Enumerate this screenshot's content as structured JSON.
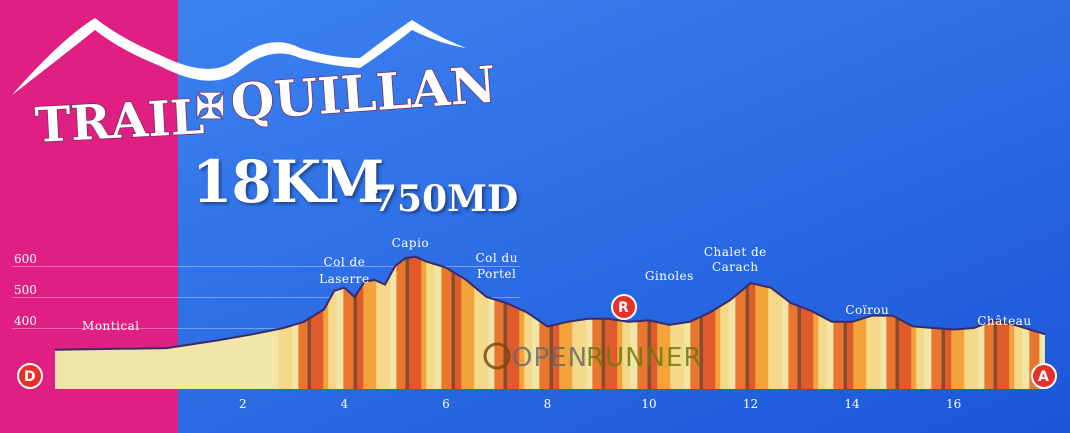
{
  "header": {
    "logo_left": "TRAIL",
    "logo_right": "QUILLAN",
    "distance": "18KM",
    "elevation": "750MD"
  },
  "watermark": {
    "prefix": "OPEN",
    "suffix": "RUNNER"
  },
  "markers": {
    "depart": "D",
    "arrivee": "A",
    "ravito": "R"
  },
  "colors": {
    "magenta_band": "#df1f82",
    "sky_top": "#4a8cf0",
    "sky_bottom": "#1a55d6",
    "stripe_palette": [
      "#8b4a2a",
      "#e05a2b",
      "#f2a33a",
      "#f4d98a",
      "#f1e6a8",
      "#e8762e"
    ],
    "marker_red": "#e8302a"
  },
  "chart_data": {
    "type": "area",
    "xlabel": "",
    "ylabel": "",
    "xlim": [
      -1.7,
      17.8
    ],
    "ylim": [
      290,
      680
    ],
    "x_ticks": [
      2,
      4,
      6,
      8,
      10,
      12,
      14,
      16
    ],
    "y_ticks": [
      400,
      500,
      600
    ],
    "x": [
      -1.7,
      0.5,
      1.5,
      2.2,
      2.8,
      3.2,
      3.6,
      3.8,
      4.0,
      4.2,
      4.4,
      4.6,
      4.8,
      5.0,
      5.2,
      5.4,
      5.6,
      6.0,
      6.4,
      6.8,
      7.2,
      7.6,
      8.0,
      8.4,
      8.8,
      9.2,
      9.6,
      10.0,
      10.4,
      10.8,
      11.2,
      11.6,
      12.0,
      12.4,
      12.8,
      13.2,
      13.6,
      14.0,
      14.4,
      14.8,
      15.2,
      15.6,
      16.0,
      16.4,
      16.8,
      17.2,
      17.8
    ],
    "y": [
      330,
      335,
      360,
      380,
      400,
      420,
      460,
      520,
      530,
      500,
      550,
      555,
      540,
      600,
      625,
      630,
      615,
      595,
      555,
      500,
      480,
      450,
      405,
      420,
      430,
      430,
      420,
      425,
      410,
      420,
      450,
      490,
      545,
      530,
      480,
      455,
      420,
      420,
      440,
      440,
      405,
      400,
      395,
      400,
      425,
      410,
      380
    ],
    "annotations": [
      {
        "label": "Montical",
        "x": -0.6
      },
      {
        "label": "Col de Laserre",
        "x": 4.0
      },
      {
        "label": "Capio",
        "x": 5.3
      },
      {
        "label": "Col du Portel",
        "x": 7.0
      },
      {
        "label": "Ginoles",
        "x": 10.4
      },
      {
        "label": "Chalet de Carach",
        "x": 11.7
      },
      {
        "label": "Coïrou",
        "x": 14.3
      },
      {
        "label": "Château",
        "x": 17.0
      }
    ]
  }
}
